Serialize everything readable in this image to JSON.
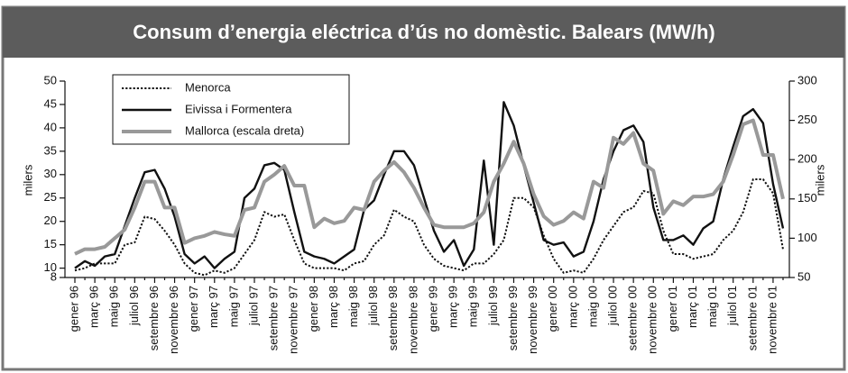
{
  "chart_data": {
    "type": "line",
    "title": "Consum d’energia eléctrica d’ús no domèstic. Balears (MW/h)",
    "ylabel": "milers",
    "y2label": "milers",
    "categories": [
      "gener 96",
      null,
      "març 96",
      null,
      "maig 96",
      null,
      "juliol 96",
      null,
      "setembre 96",
      null,
      "novembre 96",
      null,
      "gener 97",
      null,
      "març 97",
      null,
      "maig 97",
      null,
      "juliol 97",
      null,
      "setembre 97",
      null,
      "novembre 97",
      null,
      "gener 98",
      null,
      "març 98",
      null,
      "maig 98",
      null,
      "juliol 98",
      null,
      "setembre 98",
      null,
      "novembre 98",
      null,
      "gener 99",
      null,
      "març 99",
      null,
      "maig 99",
      null,
      "juliol 99",
      null,
      "setembre 99",
      null,
      "novembre 99",
      null,
      "gener 00",
      null,
      "març 00",
      null,
      "maig 00",
      null,
      "juliol 00",
      null,
      "setembre 00",
      null,
      "novembre 00",
      null,
      "gener 01",
      null,
      "març 01",
      null,
      "maig 01",
      null,
      "juliol 01",
      null,
      "setembre 01",
      null,
      "novembre 01",
      null
    ],
    "series": [
      {
        "name": "Menorca",
        "color": "#111111",
        "dash": "dotted",
        "axis": "y",
        "values": [
          9.5,
          10,
          11,
          11,
          11,
          15,
          15.5,
          21,
          20.5,
          18,
          15,
          11,
          9,
          8.5,
          9.5,
          9,
          10,
          13,
          16,
          22,
          21,
          21.5,
          16,
          11,
          10,
          10,
          10,
          9.5,
          11,
          11.5,
          15,
          17,
          22.5,
          21,
          20,
          15,
          12,
          10.5,
          10,
          9.5,
          11,
          11,
          13,
          16,
          25,
          25,
          23,
          17,
          12,
          9,
          9.5,
          9,
          12,
          16,
          19,
          22,
          23,
          26.5,
          26,
          18,
          13,
          13,
          12,
          12.5,
          13,
          16,
          18,
          22,
          29,
          29,
          26,
          14
        ]
      },
      {
        "name": "Eivissa i Formentera",
        "color": "#111111",
        "dash": "solid",
        "axis": "y",
        "values": [
          10,
          11.5,
          10.5,
          12.5,
          13,
          19,
          25,
          30.5,
          31,
          27,
          21,
          13,
          11,
          12.5,
          10,
          12,
          13.5,
          25,
          27,
          32,
          32.5,
          31,
          22,
          13.5,
          12.5,
          12,
          11,
          12.5,
          14,
          22.5,
          24.5,
          30,
          35,
          35,
          32,
          25,
          18,
          13.5,
          16,
          10.5,
          14,
          33,
          15,
          45.5,
          40.5,
          32,
          24,
          16,
          15,
          15.5,
          12.5,
          13.5,
          20,
          29,
          35,
          39.5,
          40.5,
          37,
          23,
          16,
          16,
          17,
          15,
          18.5,
          20,
          29,
          36,
          42.5,
          44,
          41,
          28,
          18.5
        ]
      },
      {
        "name": "Mallorca (escala dreta)",
        "color": "#999999",
        "dash": "solid",
        "axis": "y2",
        "values": [
          80,
          86,
          86,
          89,
          100,
          111,
          139,
          172,
          172,
          139,
          139,
          94,
          100,
          103,
          108,
          105,
          103,
          136,
          139,
          172,
          181,
          192,
          167,
          167,
          114,
          125,
          119,
          122,
          139,
          136,
          172,
          186,
          197,
          184,
          164,
          139,
          117,
          114,
          114,
          114,
          119,
          133,
          172,
          195,
          223,
          195,
          156,
          128,
          117,
          122,
          133,
          125,
          172,
          164,
          228,
          220,
          234,
          195,
          186,
          131,
          147,
          142,
          153,
          153,
          156,
          172,
          206,
          245,
          250,
          206,
          206,
          150
        ]
      }
    ],
    "ylim": [
      8,
      50
    ],
    "yticks": [
      8,
      10,
      15,
      20,
      25,
      30,
      35,
      40,
      45,
      50
    ],
    "y2lim": [
      50,
      300
    ],
    "y2ticks": [
      50,
      100,
      150,
      200,
      250,
      300
    ],
    "legend": "top-left",
    "grid": false
  }
}
